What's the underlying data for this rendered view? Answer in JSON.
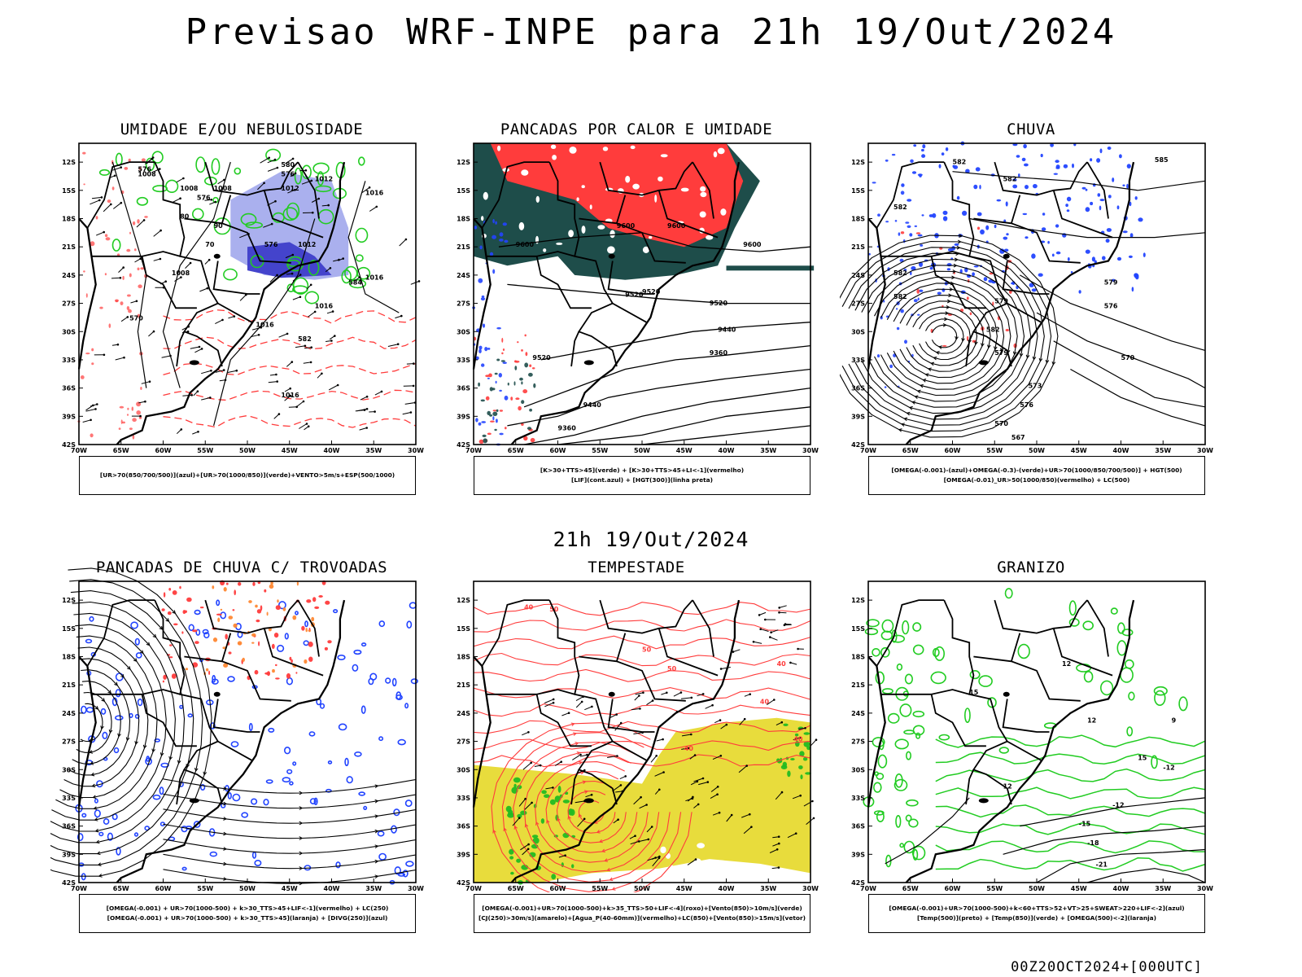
{
  "title": "Previsao WRF-INPE  para 21h 19/Out/2024",
  "subtitle": "21h 19/Out/2024",
  "footer": "00Z20OCT2024+[000UTC]",
  "axes": {
    "lat_ticks": [
      "12S",
      "15S",
      "18S",
      "21S",
      "24S",
      "27S",
      "30S",
      "33S",
      "36S",
      "39S",
      "42S"
    ],
    "lon_ticks": [
      "70W",
      "65W",
      "60W",
      "55W",
      "50W",
      "45W",
      "40W",
      "35W",
      "30W"
    ]
  },
  "colors": {
    "black": "#000000",
    "red": "#ff3c3c",
    "green": "#22cc22",
    "blue": "#2244ff",
    "lavender": "#aab0ee",
    "purple": "#4444cc",
    "darkteal": "#1e4d4a",
    "yellow": "#e8dc3c",
    "orange": "#ff8833"
  },
  "panels": [
    {
      "id": "umidade",
      "title": "UMIDADE E/OU NEBULOSIDADE",
      "legend": [
        "[UR>70(850/700/500)](azul)+[UR>70(1000/850)](verde)+VENTO>5m/s+ESP(500/1000)"
      ],
      "labels": [
        "1008",
        "1008",
        "1008",
        "1012",
        "1012",
        "1012",
        "1016",
        "1016",
        "1016",
        "1016",
        "1008",
        "1016",
        "576",
        "576",
        "576",
        "576",
        "580",
        "584",
        "570",
        "582",
        "90",
        "80",
        "70"
      ]
    },
    {
      "id": "pancadas_calor",
      "title": "PANCADAS POR CALOR E UMIDADE",
      "legend": [
        "[K>30+TTS>45](verde) + [K>30+TTS>45+LI<-1](vermelho)",
        "[LIF](cont.azul) + [HGT(300)](linha preta)"
      ],
      "labels": [
        "9600",
        "9600",
        "9600",
        "9600",
        "9520",
        "9520",
        "9520",
        "9520",
        "9440",
        "9440",
        "9360",
        "9360"
      ]
    },
    {
      "id": "chuva",
      "title": "CHUVA",
      "legend": [
        "[OMEGA(-0.001)-(azul)+OMEGA(-0.3)-(verde)+UR>70(1000/850/700/500)] + HGT(500)",
        "[OMEGA(-0.01)_UR>50(1000/850)(vermelho) + LC(500)"
      ],
      "labels": [
        "582",
        "582",
        "585",
        "582",
        "582",
        "582",
        "579",
        "576",
        "573",
        "570",
        "567",
        "570",
        "576",
        "579",
        "582",
        "579"
      ]
    },
    {
      "id": "trovoadas",
      "title": "PANCADAS DE CHUVA C/ TROVOADAS",
      "legend": [
        "[OMEGA(-0.001) + UR>70(1000-500) + k>30_TTS>45+LIF<-1](vermelho) + LC(250)",
        "[OMEGA(-0.001) + UR>70(1000-500) + k>30_TTS>45](laranja) + [DIVG(250)](azul)"
      ],
      "labels": []
    },
    {
      "id": "tempestade",
      "title": "TEMPESTADE",
      "legend": [
        "[OMEGA(-0.001)+UR>70(1000-500)+k>35_TTS>50+LIF<-4](roxo)+[Vento(850)>10m/s](verde)",
        "[CJ(250)>30m/s](amarelo)+[Agua_P(40-60mm)](vermelho)+LC(850)+[Vento(850)>15m/s](vetor)"
      ],
      "labels": [
        "50",
        "50",
        "50",
        "40",
        "40",
        "40",
        "40",
        "40"
      ]
    },
    {
      "id": "granizo",
      "title": "GRANIZO",
      "legend": [
        "[OMEGA(-0.001)+UR>70(1000-500)+k<60+TTS>52+VT>25+SWEAT>220+LIF<-2](azul)",
        "[Temp(500)](preto) + [Temp(850)](verde) + [OMEGA(500)<-2](laranja)"
      ],
      "labels": [
        "-12",
        "-12",
        "-15",
        "-18",
        "-21",
        "9",
        "12",
        "15",
        "12",
        "15",
        "12"
      ]
    }
  ]
}
